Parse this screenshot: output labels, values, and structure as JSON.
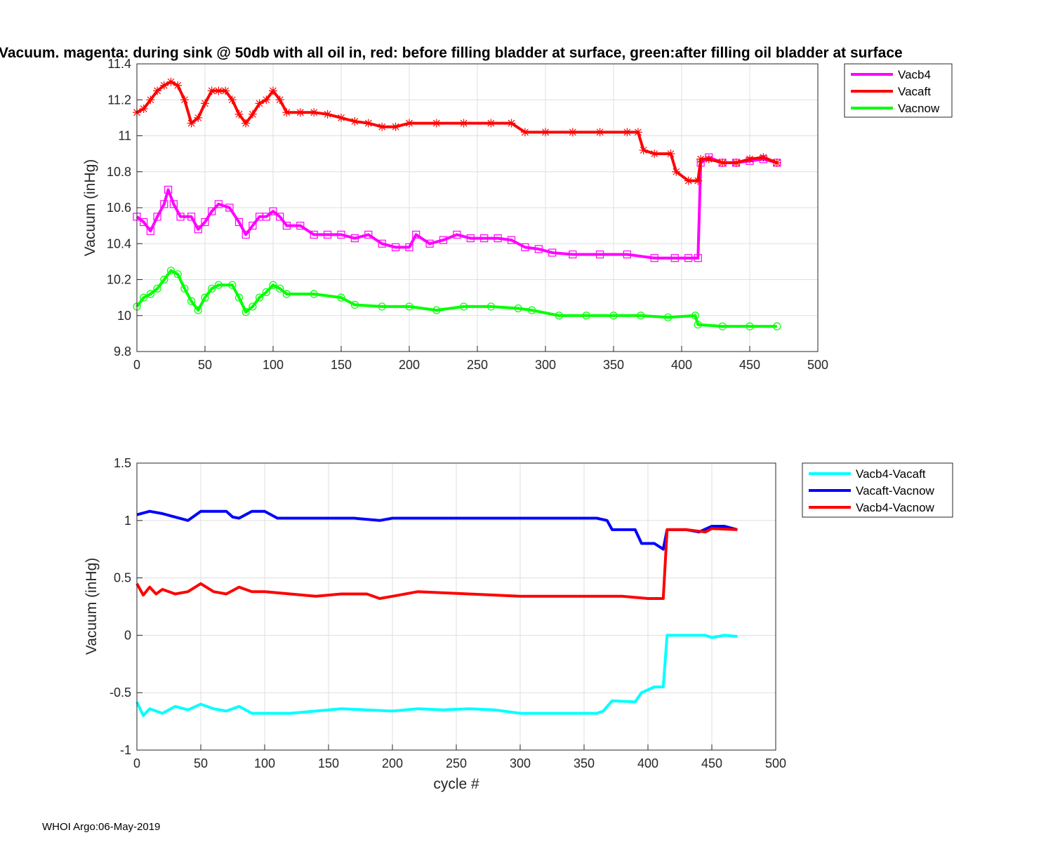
{
  "chart_data": [
    {
      "type": "line",
      "title": "Vacuum. magenta: during sink @ 50db with all oil in, red: before filling bladder at surface, green:after filling oil bladder at surface",
      "xlabel": "",
      "ylabel": "Vacuum (inHg)",
      "xlim": [
        0,
        500
      ],
      "ylim": [
        9.8,
        11.4
      ],
      "xticks": [
        "0",
        "50",
        "100",
        "150",
        "200",
        "250",
        "300",
        "350",
        "400",
        "450",
        "500"
      ],
      "yticks": [
        "9.8",
        "10",
        "10.2",
        "10.4",
        "10.6",
        "10.8",
        "11",
        "11.2",
        "11.4"
      ],
      "grid": true,
      "legend_position": "outside-top-right",
      "series": [
        {
          "name": "Vacb4",
          "color": "#ff00ff",
          "marker": "square",
          "points": [
            [
              0,
              10.55
            ],
            [
              5,
              10.52
            ],
            [
              10,
              10.47
            ],
            [
              15,
              10.55
            ],
            [
              20,
              10.62
            ],
            [
              23,
              10.7
            ],
            [
              27,
              10.62
            ],
            [
              32,
              10.55
            ],
            [
              40,
              10.55
            ],
            [
              45,
              10.48
            ],
            [
              50,
              10.52
            ],
            [
              55,
              10.58
            ],
            [
              60,
              10.62
            ],
            [
              68,
              10.6
            ],
            [
              75,
              10.52
            ],
            [
              80,
              10.45
            ],
            [
              85,
              10.5
            ],
            [
              90,
              10.55
            ],
            [
              95,
              10.55
            ],
            [
              100,
              10.58
            ],
            [
              105,
              10.55
            ],
            [
              110,
              10.5
            ],
            [
              120,
              10.5
            ],
            [
              130,
              10.45
            ],
            [
              140,
              10.45
            ],
            [
              150,
              10.45
            ],
            [
              160,
              10.43
            ],
            [
              170,
              10.45
            ],
            [
              180,
              10.4
            ],
            [
              190,
              10.38
            ],
            [
              200,
              10.38
            ],
            [
              205,
              10.45
            ],
            [
              215,
              10.4
            ],
            [
              225,
              10.42
            ],
            [
              235,
              10.45
            ],
            [
              245,
              10.43
            ],
            [
              255,
              10.43
            ],
            [
              265,
              10.43
            ],
            [
              275,
              10.42
            ],
            [
              285,
              10.38
            ],
            [
              295,
              10.37
            ],
            [
              305,
              10.35
            ],
            [
              320,
              10.34
            ],
            [
              340,
              10.34
            ],
            [
              360,
              10.34
            ],
            [
              380,
              10.32
            ],
            [
              395,
              10.32
            ],
            [
              405,
              10.32
            ],
            [
              412,
              10.32
            ],
            [
              414,
              10.85
            ],
            [
              420,
              10.88
            ],
            [
              430,
              10.85
            ],
            [
              440,
              10.85
            ],
            [
              450,
              10.86
            ],
            [
              460,
              10.87
            ],
            [
              470,
              10.85
            ]
          ]
        },
        {
          "name": "Vacaft",
          "color": "#ff0000",
          "marker": "asterisk",
          "points": [
            [
              0,
              11.13
            ],
            [
              5,
              11.15
            ],
            [
              10,
              11.2
            ],
            [
              15,
              11.25
            ],
            [
              20,
              11.28
            ],
            [
              25,
              11.3
            ],
            [
              30,
              11.28
            ],
            [
              35,
              11.2
            ],
            [
              40,
              11.07
            ],
            [
              45,
              11.1
            ],
            [
              50,
              11.18
            ],
            [
              55,
              11.25
            ],
            [
              60,
              11.25
            ],
            [
              65,
              11.25
            ],
            [
              70,
              11.2
            ],
            [
              75,
              11.12
            ],
            [
              80,
              11.07
            ],
            [
              85,
              11.12
            ],
            [
              90,
              11.18
            ],
            [
              95,
              11.2
            ],
            [
              100,
              11.25
            ],
            [
              105,
              11.2
            ],
            [
              110,
              11.13
            ],
            [
              120,
              11.13
            ],
            [
              130,
              11.13
            ],
            [
              140,
              11.12
            ],
            [
              150,
              11.1
            ],
            [
              160,
              11.08
            ],
            [
              170,
              11.07
            ],
            [
              180,
              11.05
            ],
            [
              190,
              11.05
            ],
            [
              200,
              11.07
            ],
            [
              220,
              11.07
            ],
            [
              240,
              11.07
            ],
            [
              260,
              11.07
            ],
            [
              275,
              11.07
            ],
            [
              285,
              11.02
            ],
            [
              300,
              11.02
            ],
            [
              320,
              11.02
            ],
            [
              340,
              11.02
            ],
            [
              360,
              11.02
            ],
            [
              368,
              11.02
            ],
            [
              372,
              10.92
            ],
            [
              380,
              10.9
            ],
            [
              392,
              10.9
            ],
            [
              396,
              10.8
            ],
            [
              405,
              10.75
            ],
            [
              412,
              10.75
            ],
            [
              414,
              10.87
            ],
            [
              420,
              10.87
            ],
            [
              430,
              10.85
            ],
            [
              440,
              10.85
            ],
            [
              450,
              10.87
            ],
            [
              460,
              10.88
            ],
            [
              470,
              10.85
            ]
          ]
        },
        {
          "name": "Vacnow",
          "color": "#00ff00",
          "marker": "circle",
          "points": [
            [
              0,
              10.05
            ],
            [
              5,
              10.1
            ],
            [
              10,
              10.12
            ],
            [
              15,
              10.15
            ],
            [
              20,
              10.2
            ],
            [
              25,
              10.25
            ],
            [
              30,
              10.23
            ],
            [
              35,
              10.15
            ],
            [
              40,
              10.08
            ],
            [
              45,
              10.03
            ],
            [
              50,
              10.1
            ],
            [
              55,
              10.15
            ],
            [
              60,
              10.17
            ],
            [
              70,
              10.17
            ],
            [
              75,
              10.1
            ],
            [
              80,
              10.02
            ],
            [
              85,
              10.05
            ],
            [
              90,
              10.1
            ],
            [
              95,
              10.13
            ],
            [
              100,
              10.17
            ],
            [
              105,
              10.15
            ],
            [
              110,
              10.12
            ],
            [
              130,
              10.12
            ],
            [
              150,
              10.1
            ],
            [
              160,
              10.06
            ],
            [
              180,
              10.05
            ],
            [
              200,
              10.05
            ],
            [
              220,
              10.03
            ],
            [
              240,
              10.05
            ],
            [
              260,
              10.05
            ],
            [
              280,
              10.04
            ],
            [
              290,
              10.03
            ],
            [
              310,
              10.0
            ],
            [
              330,
              10.0
            ],
            [
              350,
              10.0
            ],
            [
              370,
              10.0
            ],
            [
              390,
              9.99
            ],
            [
              410,
              10.0
            ],
            [
              412,
              9.95
            ],
            [
              430,
              9.94
            ],
            [
              450,
              9.94
            ],
            [
              470,
              9.94
            ]
          ]
        }
      ]
    },
    {
      "type": "line",
      "title": "",
      "xlabel": "cycle #",
      "ylabel": "Vacuum (inHg)",
      "xlim": [
        0,
        500
      ],
      "ylim": [
        -1,
        1.5
      ],
      "xticks": [
        "0",
        "50",
        "100",
        "150",
        "200",
        "250",
        "300",
        "350",
        "400",
        "450",
        "500"
      ],
      "yticks": [
        "-1",
        "-0.5",
        "0",
        "0.5",
        "1",
        "1.5"
      ],
      "grid": true,
      "legend_position": "outside-top-right",
      "series": [
        {
          "name": "Vacb4-Vacaft",
          "color": "#00ffff",
          "points": [
            [
              0,
              -0.58
            ],
            [
              5,
              -0.7
            ],
            [
              10,
              -0.64
            ],
            [
              15,
              -0.66
            ],
            [
              20,
              -0.68
            ],
            [
              30,
              -0.62
            ],
            [
              40,
              -0.65
            ],
            [
              50,
              -0.6
            ],
            [
              60,
              -0.64
            ],
            [
              70,
              -0.66
            ],
            [
              80,
              -0.62
            ],
            [
              90,
              -0.68
            ],
            [
              100,
              -0.68
            ],
            [
              120,
              -0.68
            ],
            [
              140,
              -0.66
            ],
            [
              160,
              -0.64
            ],
            [
              180,
              -0.65
            ],
            [
              200,
              -0.66
            ],
            [
              220,
              -0.64
            ],
            [
              240,
              -0.65
            ],
            [
              260,
              -0.64
            ],
            [
              280,
              -0.65
            ],
            [
              300,
              -0.68
            ],
            [
              320,
              -0.68
            ],
            [
              340,
              -0.68
            ],
            [
              360,
              -0.68
            ],
            [
              365,
              -0.66
            ],
            [
              372,
              -0.57
            ],
            [
              390,
              -0.58
            ],
            [
              395,
              -0.5
            ],
            [
              405,
              -0.45
            ],
            [
              412,
              -0.45
            ],
            [
              415,
              0.0
            ],
            [
              430,
              0.0
            ],
            [
              445,
              0.0
            ],
            [
              450,
              -0.02
            ],
            [
              460,
              0.0
            ],
            [
              470,
              -0.01
            ]
          ]
        },
        {
          "name": "Vacaft-Vacnow",
          "color": "#0000ff",
          "points": [
            [
              0,
              1.05
            ],
            [
              10,
              1.08
            ],
            [
              20,
              1.06
            ],
            [
              30,
              1.03
            ],
            [
              40,
              1.0
            ],
            [
              50,
              1.08
            ],
            [
              60,
              1.08
            ],
            [
              70,
              1.08
            ],
            [
              75,
              1.03
            ],
            [
              80,
              1.02
            ],
            [
              90,
              1.08
            ],
            [
              100,
              1.08
            ],
            [
              110,
              1.02
            ],
            [
              130,
              1.02
            ],
            [
              150,
              1.02
            ],
            [
              170,
              1.02
            ],
            [
              190,
              1.0
            ],
            [
              200,
              1.02
            ],
            [
              220,
              1.02
            ],
            [
              240,
              1.02
            ],
            [
              260,
              1.02
            ],
            [
              280,
              1.02
            ],
            [
              300,
              1.02
            ],
            [
              320,
              1.02
            ],
            [
              340,
              1.02
            ],
            [
              360,
              1.02
            ],
            [
              368,
              1.0
            ],
            [
              372,
              0.92
            ],
            [
              390,
              0.92
            ],
            [
              395,
              0.8
            ],
            [
              405,
              0.8
            ],
            [
              412,
              0.75
            ],
            [
              415,
              0.92
            ],
            [
              430,
              0.92
            ],
            [
              440,
              0.9
            ],
            [
              450,
              0.95
            ],
            [
              460,
              0.95
            ],
            [
              470,
              0.92
            ]
          ]
        },
        {
          "name": "Vacb4-Vacnow",
          "color": "#ff0000",
          "points": [
            [
              0,
              0.45
            ],
            [
              5,
              0.35
            ],
            [
              10,
              0.42
            ],
            [
              15,
              0.36
            ],
            [
              20,
              0.4
            ],
            [
              30,
              0.36
            ],
            [
              40,
              0.38
            ],
            [
              50,
              0.45
            ],
            [
              60,
              0.38
            ],
            [
              70,
              0.36
            ],
            [
              80,
              0.42
            ],
            [
              90,
              0.38
            ],
            [
              100,
              0.38
            ],
            [
              120,
              0.36
            ],
            [
              140,
              0.34
            ],
            [
              160,
              0.36
            ],
            [
              180,
              0.36
            ],
            [
              190,
              0.32
            ],
            [
              200,
              0.34
            ],
            [
              220,
              0.38
            ],
            [
              240,
              0.37
            ],
            [
              260,
              0.36
            ],
            [
              280,
              0.35
            ],
            [
              300,
              0.34
            ],
            [
              320,
              0.34
            ],
            [
              340,
              0.34
            ],
            [
              360,
              0.34
            ],
            [
              380,
              0.34
            ],
            [
              400,
              0.32
            ],
            [
              412,
              0.32
            ],
            [
              415,
              0.92
            ],
            [
              430,
              0.92
            ],
            [
              445,
              0.9
            ],
            [
              450,
              0.93
            ],
            [
              470,
              0.92
            ]
          ]
        }
      ]
    }
  ],
  "footer": "WHOI Argo:06-May-2019"
}
